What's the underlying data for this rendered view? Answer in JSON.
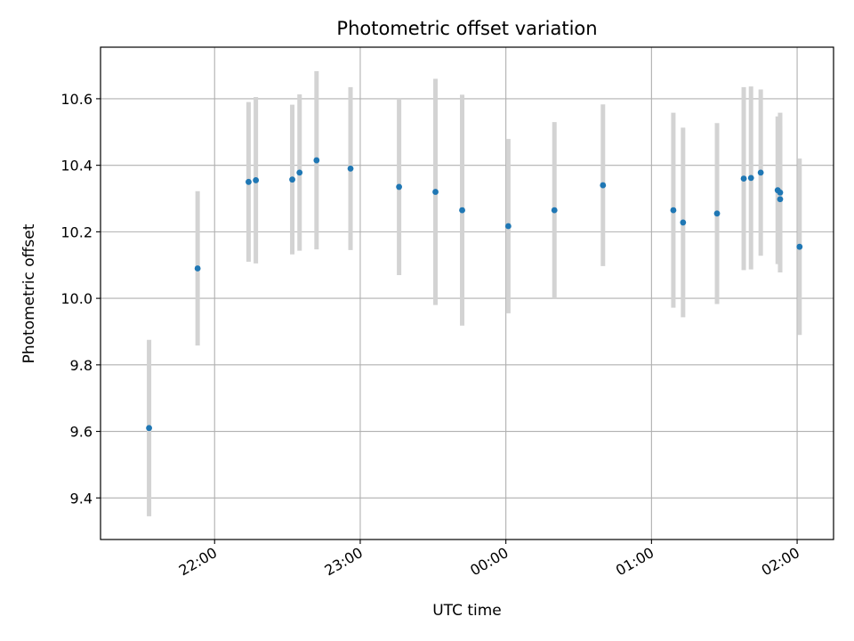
{
  "chart_data": {
    "type": "scatter",
    "title": "Photometric offset variation",
    "xlabel": "UTC time",
    "ylabel": "Photometric offset",
    "x_unit": "hh:mm UTC",
    "xlim": [
      "21:13",
      "02:15"
    ],
    "ylim": [
      9.275,
      10.755
    ],
    "grid": true,
    "x_ticks": [
      "22:00",
      "23:00",
      "00:00",
      "01:00",
      "02:00"
    ],
    "y_ticks": [
      "9.4",
      "9.6",
      "9.8",
      "10.0",
      "10.2",
      "10.4",
      "10.6"
    ],
    "colors": {
      "point": "#1f77b4",
      "errorbar": "#d3d3d3",
      "grid": "#b0b0b0",
      "axes": "#000000"
    },
    "series": [
      {
        "points": [
          {
            "x": "21:33",
            "y": 9.61,
            "err": 0.265
          },
          {
            "x": "21:53",
            "y": 10.09,
            "err": 0.232
          },
          {
            "x": "22:14",
            "y": 10.35,
            "err": 0.24
          },
          {
            "x": "22:17",
            "y": 10.355,
            "err": 0.25
          },
          {
            "x": "22:32",
            "y": 10.357,
            "err": 0.225
          },
          {
            "x": "22:35",
            "y": 10.378,
            "err": 0.235
          },
          {
            "x": "22:42",
            "y": 10.415,
            "err": 0.268
          },
          {
            "x": "22:56",
            "y": 10.39,
            "err": 0.245
          },
          {
            "x": "23:16",
            "y": 10.335,
            "err": 0.265
          },
          {
            "x": "23:31",
            "y": 10.32,
            "err": 0.34
          },
          {
            "x": "23:42",
            "y": 10.265,
            "err": 0.347
          },
          {
            "x": "00:01",
            "y": 10.217,
            "err": 0.262
          },
          {
            "x": "00:20",
            "y": 10.265,
            "err": 0.265
          },
          {
            "x": "00:40",
            "y": 10.34,
            "err": 0.243
          },
          {
            "x": "01:09",
            "y": 10.265,
            "err": 0.293
          },
          {
            "x": "01:13",
            "y": 10.228,
            "err": 0.285
          },
          {
            "x": "01:27",
            "y": 10.255,
            "err": 0.272
          },
          {
            "x": "01:38",
            "y": 10.36,
            "err": 0.275
          },
          {
            "x": "01:41",
            "y": 10.362,
            "err": 0.275
          },
          {
            "x": "01:45",
            "y": 10.378,
            "err": 0.25
          },
          {
            "x": "01:52",
            "y": 10.325,
            "err": 0.222
          },
          {
            "x": "01:53",
            "y": 10.298,
            "err": 0.22
          },
          {
            "x": "01:53",
            "y": 10.318,
            "err": 0.24
          },
          {
            "x": "02:01",
            "y": 10.155,
            "err": 0.265
          }
        ]
      }
    ]
  }
}
